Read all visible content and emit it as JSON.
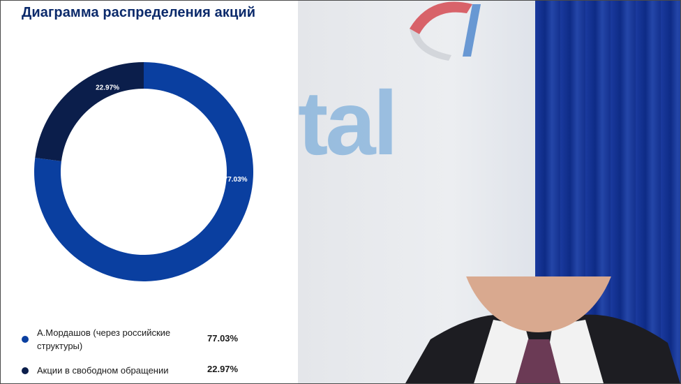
{
  "title": "Диаграмма распределения акций",
  "chart_data": {
    "type": "pie",
    "variant": "donut",
    "title": "Диаграмма распределения акций",
    "slices": [
      {
        "label": "А.Мордашов (через российские структуры)",
        "value": 77.03,
        "display": "77.03%",
        "color": "#0a3fa0"
      },
      {
        "label": "Акции в свободном обращении",
        "value": 22.97,
        "display": "22.97%",
        "color": "#0b1e4b"
      }
    ]
  },
  "legend": [
    {
      "label": "А.Мордашов (через российские структуры)",
      "value": "77.03%"
    },
    {
      "label": "Акции в свободном обращении",
      "value": "22.97%"
    }
  ],
  "photo": {
    "logo_text": "tal",
    "colors": {
      "curtain": "#12308f",
      "logo": "#5b9bd5",
      "logo_red": "#d2343c"
    }
  }
}
